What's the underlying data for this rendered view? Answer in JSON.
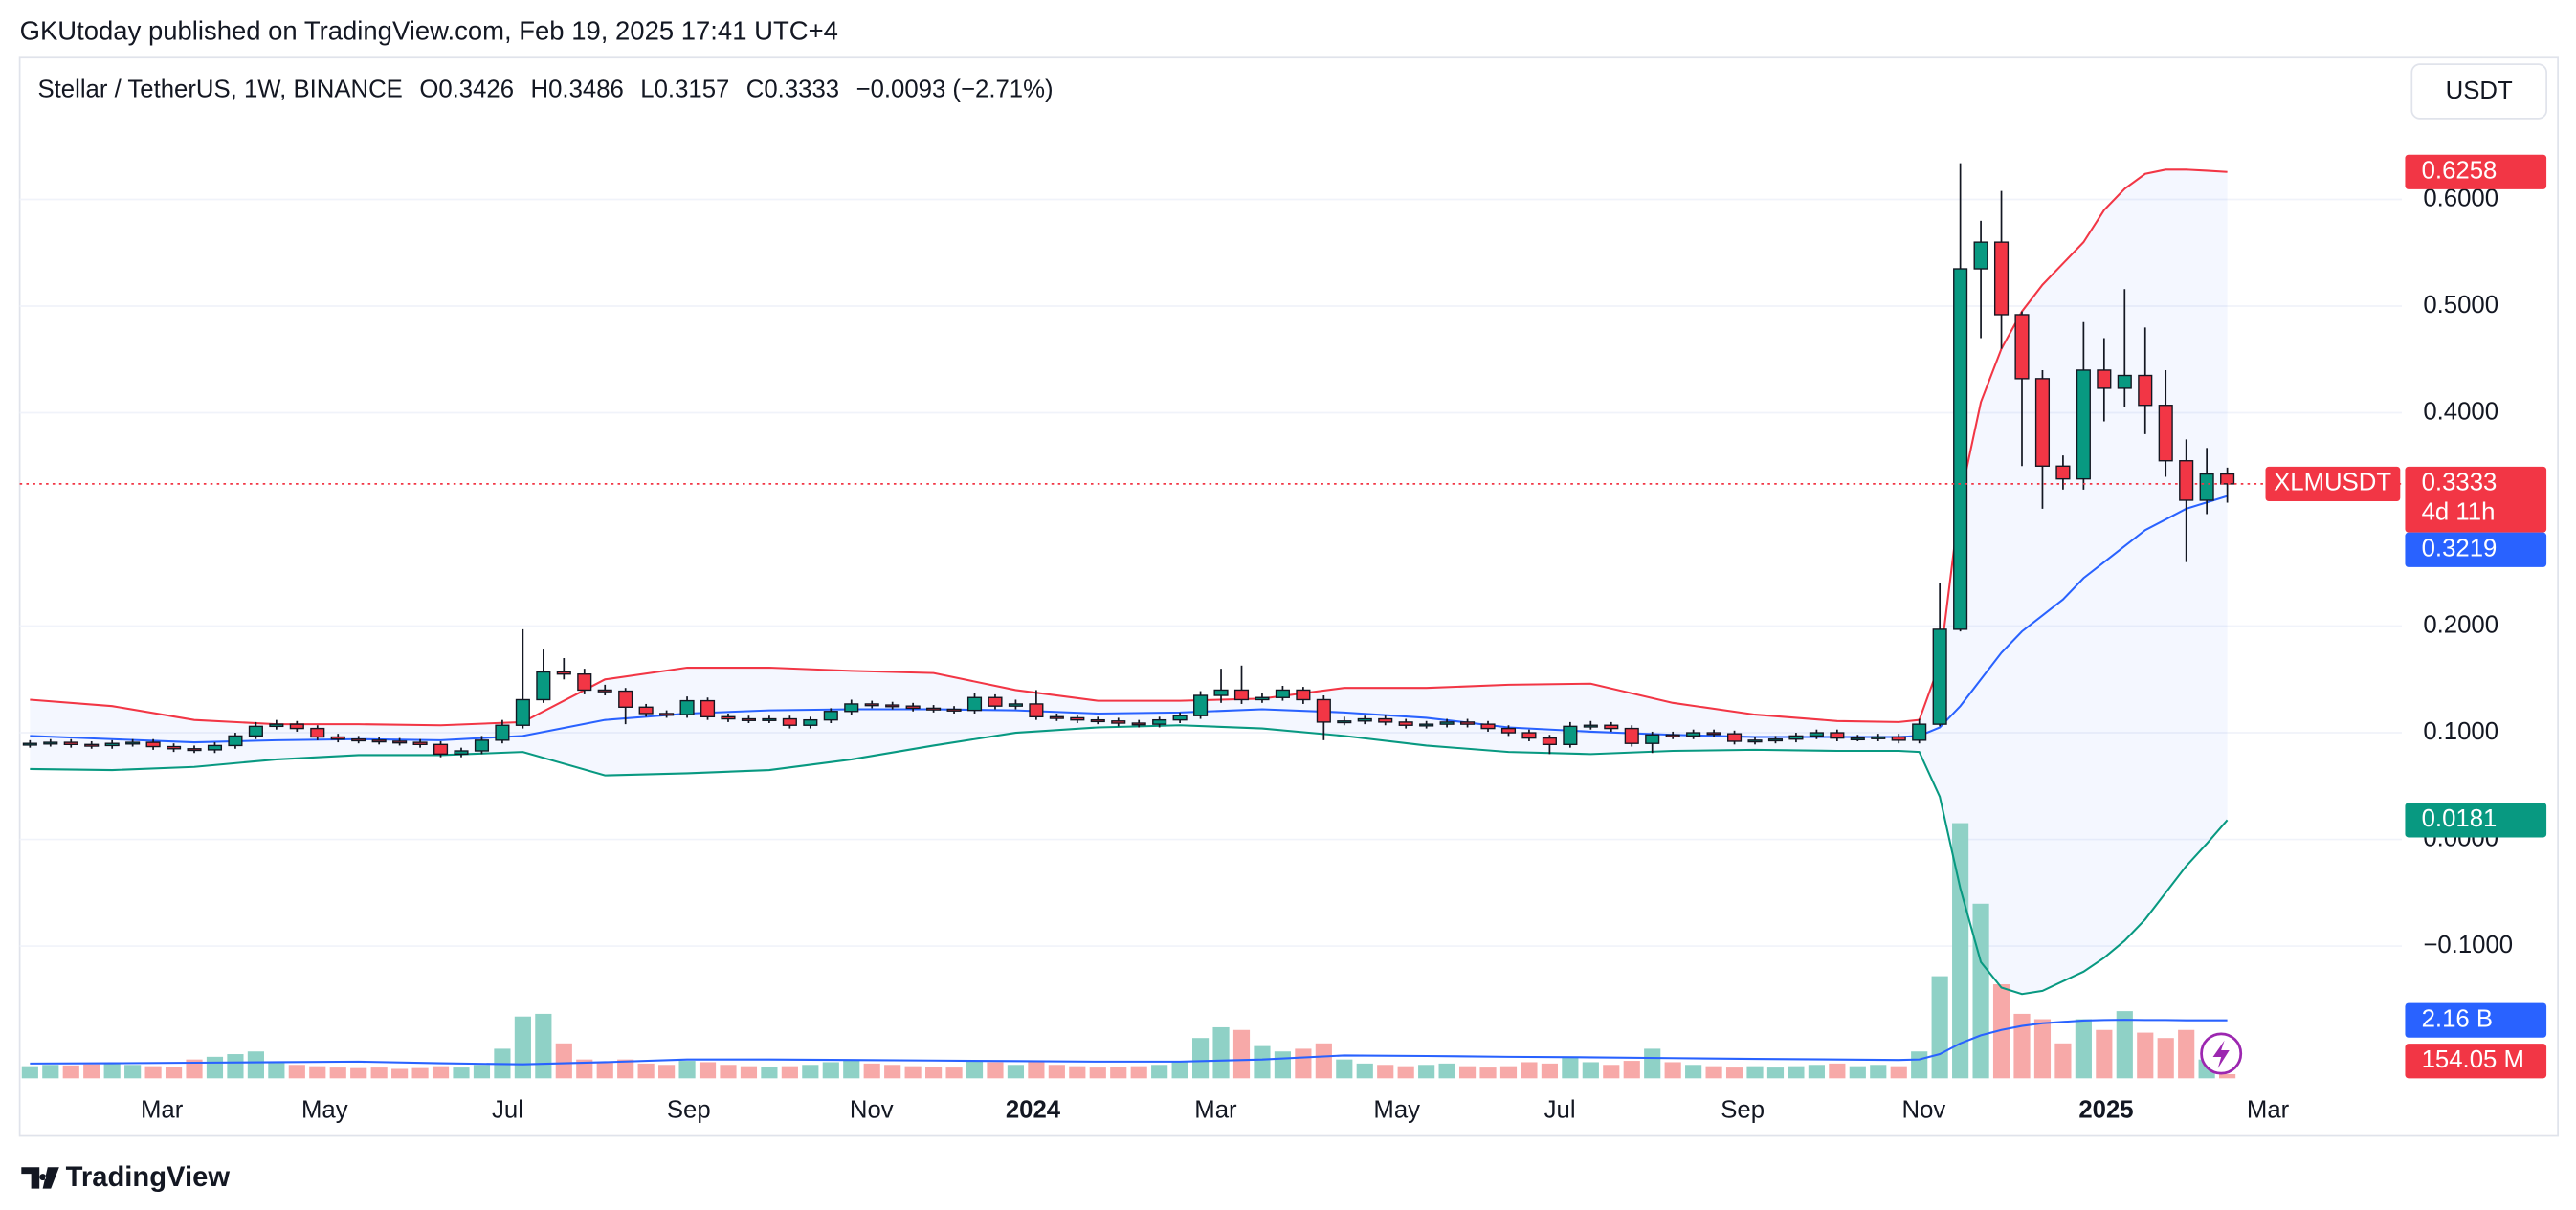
{
  "header": "GKUtoday published on TradingView.com, Feb 19, 2025 17:41 UTC+4",
  "footer": "TradingView",
  "chart_data": {
    "type": "candlestick",
    "title": "Stellar / TetherUS, 1W, BINANCE",
    "symbol": "XLMUSDT",
    "currency": "USDT",
    "legend_labels": {
      "open": "O",
      "high": "H",
      "low": "L",
      "close": "C"
    },
    "change": "−0.0093 (−2.71%)",
    "countdown": "4d 11h",
    "candles": {
      "up_color": "#089981",
      "down_color": "#f23645",
      "open": [
        0.089,
        0.09,
        0.091,
        0.089,
        0.088,
        0.09,
        0.091,
        0.087,
        0.085,
        0.084,
        0.088,
        0.097,
        0.106,
        0.108,
        0.104,
        0.096,
        0.094,
        0.093,
        0.092,
        0.091,
        0.089,
        0.08,
        0.083,
        0.093,
        0.107,
        0.131,
        0.157,
        0.155,
        0.14,
        0.139,
        0.124,
        0.118,
        0.117,
        0.13,
        0.115,
        0.113,
        0.112,
        0.113,
        0.107,
        0.112,
        0.12,
        0.127,
        0.126,
        0.125,
        0.123,
        0.122,
        0.121,
        0.133,
        0.125,
        0.127,
        0.115,
        0.114,
        0.112,
        0.111,
        0.109,
        0.108,
        0.112,
        0.116,
        0.135,
        0.14,
        0.131,
        0.133,
        0.14,
        0.131,
        0.11,
        0.111,
        0.113,
        0.11,
        0.107,
        0.108,
        0.11,
        0.108,
        0.104,
        0.1,
        0.095,
        0.089,
        0.106,
        0.107,
        0.104,
        0.09,
        0.098,
        0.097,
        0.1,
        0.099,
        0.092,
        0.093,
        0.094,
        0.097,
        0.1,
        0.095,
        0.095,
        0.096,
        0.093,
        0.108,
        0.197,
        0.535,
        0.56,
        0.492,
        0.432,
        0.35,
        0.338,
        0.44,
        0.423,
        0.435,
        0.407,
        0.355,
        0.318,
        0.3426
      ],
      "high": [
        0.093,
        0.094,
        0.094,
        0.092,
        0.093,
        0.094,
        0.094,
        0.09,
        0.088,
        0.091,
        0.1,
        0.11,
        0.112,
        0.111,
        0.107,
        0.099,
        0.097,
        0.096,
        0.095,
        0.094,
        0.092,
        0.086,
        0.097,
        0.112,
        0.197,
        0.178,
        0.17,
        0.16,
        0.145,
        0.142,
        0.127,
        0.121,
        0.134,
        0.133,
        0.118,
        0.116,
        0.116,
        0.116,
        0.115,
        0.123,
        0.131,
        0.13,
        0.129,
        0.128,
        0.126,
        0.125,
        0.137,
        0.136,
        0.131,
        0.14,
        0.118,
        0.117,
        0.115,
        0.114,
        0.112,
        0.115,
        0.119,
        0.139,
        0.16,
        0.163,
        0.137,
        0.144,
        0.143,
        0.135,
        0.115,
        0.116,
        0.116,
        0.113,
        0.111,
        0.113,
        0.113,
        0.111,
        0.107,
        0.103,
        0.098,
        0.11,
        0.111,
        0.11,
        0.107,
        0.101,
        0.101,
        0.103,
        0.103,
        0.102,
        0.096,
        0.097,
        0.1,
        0.103,
        0.103,
        0.098,
        0.099,
        0.099,
        0.113,
        0.24,
        0.634,
        0.58,
        0.608,
        0.495,
        0.44,
        0.36,
        0.485,
        0.47,
        0.516,
        0.48,
        0.44,
        0.375,
        0.367,
        0.3486
      ],
      "low": [
        0.086,
        0.087,
        0.086,
        0.085,
        0.085,
        0.087,
        0.084,
        0.082,
        0.081,
        0.081,
        0.085,
        0.094,
        0.103,
        0.101,
        0.093,
        0.091,
        0.09,
        0.089,
        0.088,
        0.086,
        0.077,
        0.077,
        0.08,
        0.09,
        0.104,
        0.128,
        0.15,
        0.136,
        0.135,
        0.108,
        0.115,
        0.114,
        0.114,
        0.112,
        0.11,
        0.109,
        0.109,
        0.104,
        0.104,
        0.109,
        0.117,
        0.123,
        0.122,
        0.12,
        0.119,
        0.118,
        0.118,
        0.122,
        0.122,
        0.112,
        0.111,
        0.109,
        0.108,
        0.106,
        0.105,
        0.105,
        0.109,
        0.113,
        0.128,
        0.127,
        0.128,
        0.13,
        0.127,
        0.093,
        0.107,
        0.108,
        0.107,
        0.104,
        0.104,
        0.105,
        0.105,
        0.101,
        0.097,
        0.092,
        0.08,
        0.086,
        0.103,
        0.101,
        0.087,
        0.081,
        0.094,
        0.094,
        0.096,
        0.089,
        0.089,
        0.09,
        0.091,
        0.094,
        0.092,
        0.092,
        0.092,
        0.09,
        0.09,
        0.106,
        0.195,
        0.47,
        0.46,
        0.35,
        0.31,
        0.328,
        0.328,
        0.392,
        0.405,
        0.38,
        0.34,
        0.26,
        0.305,
        0.3157
      ],
      "close": [
        0.09,
        0.091,
        0.089,
        0.088,
        0.09,
        0.091,
        0.087,
        0.085,
        0.084,
        0.088,
        0.097,
        0.106,
        0.108,
        0.104,
        0.096,
        0.094,
        0.093,
        0.092,
        0.091,
        0.089,
        0.08,
        0.083,
        0.093,
        0.107,
        0.131,
        0.157,
        0.155,
        0.14,
        0.139,
        0.124,
        0.118,
        0.117,
        0.13,
        0.115,
        0.113,
        0.112,
        0.113,
        0.107,
        0.112,
        0.12,
        0.127,
        0.126,
        0.125,
        0.123,
        0.122,
        0.121,
        0.133,
        0.125,
        0.127,
        0.115,
        0.114,
        0.112,
        0.111,
        0.109,
        0.108,
        0.112,
        0.116,
        0.135,
        0.14,
        0.131,
        0.133,
        0.14,
        0.131,
        0.11,
        0.111,
        0.113,
        0.11,
        0.107,
        0.108,
        0.11,
        0.108,
        0.104,
        0.1,
        0.095,
        0.089,
        0.106,
        0.107,
        0.104,
        0.09,
        0.098,
        0.097,
        0.1,
        0.099,
        0.092,
        0.093,
        0.094,
        0.097,
        0.1,
        0.095,
        0.095,
        0.096,
        0.093,
        0.108,
        0.197,
        0.535,
        0.56,
        0.492,
        0.432,
        0.35,
        0.338,
        0.44,
        0.423,
        0.435,
        0.407,
        0.355,
        0.318,
        0.3426,
        0.3333
      ]
    },
    "bands": {
      "upper_color": "#f23645",
      "middle_color": "#2962ff",
      "lower_color": "#089981",
      "x": [
        0,
        4,
        8,
        12,
        16,
        20,
        24,
        28,
        32,
        36,
        40,
        44,
        48,
        52,
        56,
        60,
        64,
        68,
        72,
        76,
        80,
        84,
        88,
        91,
        92,
        93,
        94,
        95,
        96,
        97,
        98,
        99,
        100,
        101,
        102,
        103,
        104,
        105,
        106,
        107
      ],
      "upper": [
        0.131,
        0.125,
        0.112,
        0.108,
        0.108,
        0.107,
        0.11,
        0.15,
        0.161,
        0.161,
        0.158,
        0.156,
        0.14,
        0.13,
        0.13,
        0.132,
        0.142,
        0.142,
        0.145,
        0.146,
        0.128,
        0.117,
        0.111,
        0.11,
        0.112,
        0.165,
        0.32,
        0.41,
        0.46,
        0.495,
        0.52,
        0.54,
        0.56,
        0.59,
        0.61,
        0.624,
        0.628,
        0.628,
        0.627,
        0.6258
      ],
      "middle": [
        0.097,
        0.094,
        0.091,
        0.093,
        0.094,
        0.093,
        0.097,
        0.112,
        0.118,
        0.121,
        0.122,
        0.122,
        0.121,
        0.118,
        0.119,
        0.122,
        0.119,
        0.114,
        0.105,
        0.101,
        0.098,
        0.096,
        0.096,
        0.096,
        0.097,
        0.105,
        0.125,
        0.15,
        0.175,
        0.195,
        0.21,
        0.225,
        0.245,
        0.26,
        0.275,
        0.29,
        0.3,
        0.31,
        0.316,
        0.3219
      ],
      "lower": [
        0.066,
        0.065,
        0.068,
        0.075,
        0.079,
        0.079,
        0.082,
        0.06,
        0.062,
        0.065,
        0.075,
        0.088,
        0.1,
        0.105,
        0.107,
        0.104,
        0.097,
        0.088,
        0.082,
        0.08,
        0.083,
        0.084,
        0.083,
        0.083,
        0.082,
        0.04,
        -0.046,
        -0.115,
        -0.139,
        -0.145,
        -0.142,
        -0.133,
        -0.124,
        -0.111,
        -0.095,
        -0.075,
        -0.05,
        -0.025,
        -0.004,
        0.0181
      ]
    },
    "volume": {
      "ylim": [
        0,
        38000
      ],
      "up_color": "#8fd1c6",
      "down_color": "#f7a9a8",
      "values": [
        450,
        500,
        480,
        520,
        560,
        500,
        450,
        420,
        700,
        800,
        900,
        1000,
        600,
        500,
        450,
        400,
        380,
        400,
        350,
        380,
        450,
        400,
        500,
        1100,
        2300,
        2400,
        1300,
        700,
        600,
        700,
        550,
        500,
        650,
        600,
        500,
        450,
        420,
        450,
        500,
        600,
        700,
        550,
        500,
        450,
        420,
        400,
        650,
        600,
        500,
        650,
        500,
        450,
        400,
        420,
        450,
        500,
        600,
        1500,
        1900,
        1800,
        1200,
        1000,
        1100,
        1300,
        700,
        550,
        500,
        450,
        500,
        550,
        450,
        400,
        450,
        600,
        550,
        800,
        600,
        500,
        650,
        1100,
        600,
        500,
        450,
        400,
        450,
        400,
        450,
        500,
        550,
        450,
        500,
        450,
        1000,
        3800,
        9500,
        6500,
        3500,
        2400,
        2200,
        1300,
        2200,
        1800,
        2500,
        1700,
        1500,
        1800,
        700,
        154.05
      ],
      "last_value_label": "154.05 M",
      "ma": {
        "color": "#2962ff",
        "values": [
          550,
          560,
          580,
          600,
          620,
          560,
          520,
          600,
          700,
          700,
          680,
          660,
          640,
          620,
          620,
          700,
          850,
          830,
          800,
          780,
          750,
          720,
          700,
          680,
          700,
          900,
          1300,
          1600,
          1800,
          1950,
          2050,
          2100,
          2150,
          2170,
          2180,
          2170,
          2170,
          2160,
          2160,
          2160
        ],
        "last_value_label": "2.16 B"
      }
    },
    "xlim": [
      -0.5,
      115.5
    ],
    "xticks": [
      {
        "value": 6.42,
        "label": "Mar"
      },
      {
        "value": 14.35,
        "label": "May"
      },
      {
        "value": 23.26,
        "label": "Jul"
      },
      {
        "value": 32.08,
        "label": "Sep"
      },
      {
        "value": 40.98,
        "label": "Nov"
      },
      {
        "value": 48.84,
        "label": "2024"
      },
      {
        "value": 57.74,
        "label": "Mar"
      },
      {
        "value": 66.56,
        "label": "May"
      },
      {
        "value": 74.5,
        "label": "Jul"
      },
      {
        "value": 83.4,
        "label": "Sep"
      },
      {
        "value": 92.22,
        "label": "Nov"
      },
      {
        "value": 101.1,
        "label": "2025"
      },
      {
        "value": 108.98,
        "label": "Mar"
      }
    ],
    "ylim": [
      -0.224,
      0.733
    ],
    "yticks": [
      {
        "value": -0.1,
        "label": "−0.1000"
      },
      {
        "value": 0,
        "label": "0.0000"
      },
      {
        "value": 0.1,
        "label": "0.1000"
      },
      {
        "value": 0.2,
        "label": "0.2000"
      },
      {
        "value": 0.4,
        "label": "0.4000"
      },
      {
        "value": 0.5,
        "label": "0.5000"
      },
      {
        "value": 0.6,
        "label": "0.6000"
      }
    ],
    "grid": true
  }
}
